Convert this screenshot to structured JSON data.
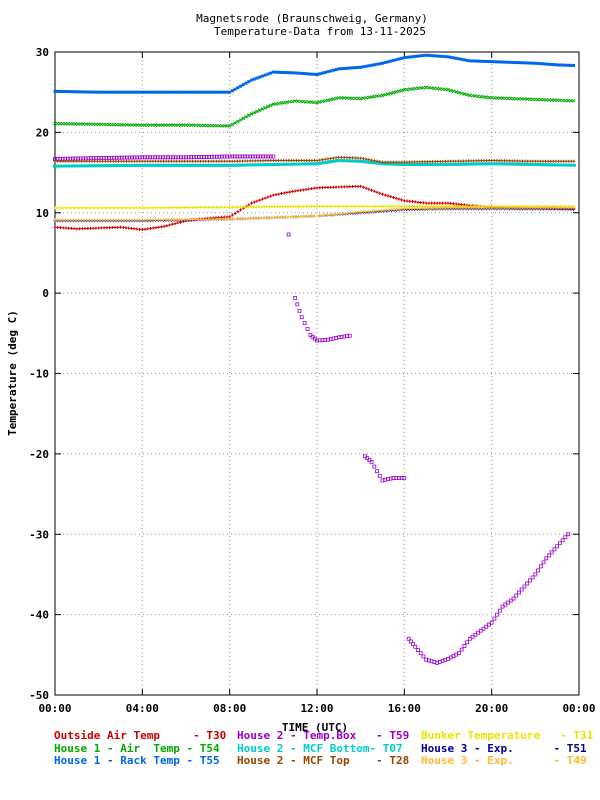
{
  "chart_data": {
    "type": "scatter",
    "title": "Magnetsrode (Braunschweig, Germany)",
    "subtitle": "Temperature-Data from 13-11-2025",
    "xlabel": "TIME (UTC)",
    "ylabel": "Temperature (deg C)",
    "xlim": [
      0,
      24
    ],
    "ylim": [
      -50,
      30
    ],
    "x_ticks": [
      "00:00",
      "04:00",
      "08:00",
      "12:00",
      "16:00",
      "20:00",
      "00:00"
    ],
    "y_ticks": [
      "30",
      "20",
      "10",
      "0",
      "-10",
      "-20",
      "-30",
      "-40",
      "-50"
    ],
    "grid": true,
    "legend_position": "bottom",
    "series": [
      {
        "name": "Outside Air Temp",
        "code": "T30",
        "color": "#cc0000",
        "marker": "plus",
        "points": [
          [
            0,
            8.2
          ],
          [
            1,
            8.0
          ],
          [
            2,
            8.1
          ],
          [
            3,
            8.2
          ],
          [
            4,
            7.9
          ],
          [
            5,
            8.3
          ],
          [
            6,
            9.0
          ],
          [
            7,
            9.3
          ],
          [
            8,
            9.5
          ],
          [
            9,
            11.2
          ],
          [
            10,
            12.2
          ],
          [
            11,
            12.7
          ],
          [
            12,
            13.1
          ],
          [
            13,
            13.2
          ],
          [
            14,
            13.3
          ],
          [
            15,
            12.3
          ],
          [
            16,
            11.5
          ],
          [
            17,
            11.2
          ],
          [
            18,
            11.2
          ],
          [
            19,
            10.9
          ],
          [
            20,
            10.7
          ],
          [
            21,
            10.6
          ],
          [
            22,
            10.5
          ],
          [
            23,
            10.5
          ],
          [
            24,
            10.4
          ]
        ]
      },
      {
        "name": "House 2 - Temp.Box",
        "code": "T59",
        "color": "#9900cc",
        "marker": "square",
        "points": [
          [
            0,
            16.7
          ],
          [
            2,
            16.8
          ],
          [
            4,
            16.9
          ],
          [
            6,
            16.9
          ],
          [
            8,
            17.0
          ],
          [
            10,
            17.0
          ],
          [
            10.7,
            7.3
          ],
          [
            11.0,
            -0.6
          ],
          [
            11.3,
            -3.0
          ],
          [
            11.7,
            -5.2
          ],
          [
            12.0,
            -5.9
          ],
          [
            12.5,
            -5.8
          ],
          [
            13.0,
            -5.5
          ],
          [
            13.5,
            -5.3
          ],
          [
            14.2,
            -20.3
          ],
          [
            14.5,
            -21.0
          ],
          [
            15.0,
            -23.3
          ],
          [
            15.5,
            -23.0
          ],
          [
            16.0,
            -23.0
          ],
          [
            16.2,
            -43.0
          ],
          [
            16.5,
            -44.0
          ],
          [
            17.0,
            -45.6
          ],
          [
            17.5,
            -46.0
          ],
          [
            18.0,
            -45.5
          ],
          [
            18.5,
            -44.8
          ],
          [
            19.0,
            -43.0
          ],
          [
            19.5,
            -42.0
          ],
          [
            20.0,
            -41.0
          ],
          [
            20.5,
            -39.0
          ],
          [
            21.0,
            -38.0
          ],
          [
            21.5,
            -36.5
          ],
          [
            22.0,
            -35.0
          ],
          [
            22.5,
            -33.0
          ],
          [
            23.0,
            -31.5
          ],
          [
            23.5,
            -30.0
          ]
        ]
      },
      {
        "name": "Bunker Temperature",
        "code": "T31",
        "color": "#e6e600",
        "marker": "plus",
        "points": [
          [
            0,
            10.6
          ],
          [
            4,
            10.6
          ],
          [
            8,
            10.7
          ],
          [
            12,
            10.8
          ],
          [
            16,
            10.8
          ],
          [
            20,
            10.8
          ],
          [
            24,
            10.8
          ]
        ]
      },
      {
        "name": "House 1 - Air  Temp",
        "code": "T54",
        "color": "#00aa00",
        "marker": "cross",
        "points": [
          [
            0,
            21.1
          ],
          [
            2,
            21.0
          ],
          [
            4,
            20.9
          ],
          [
            6,
            20.9
          ],
          [
            8,
            20.8
          ],
          [
            9,
            22.3
          ],
          [
            10,
            23.5
          ],
          [
            11,
            23.9
          ],
          [
            12,
            23.7
          ],
          [
            13,
            24.3
          ],
          [
            14,
            24.2
          ],
          [
            15,
            24.6
          ],
          [
            16,
            25.3
          ],
          [
            17,
            25.6
          ],
          [
            18,
            25.3
          ],
          [
            19,
            24.6
          ],
          [
            20,
            24.3
          ],
          [
            21,
            24.2
          ],
          [
            22,
            24.1
          ],
          [
            23,
            24.0
          ],
          [
            24,
            23.9
          ]
        ]
      },
      {
        "name": "House 2 - MCF Bottom",
        "code": "T07",
        "color": "#00cccc",
        "marker": "dash",
        "points": [
          [
            0,
            15.8
          ],
          [
            4,
            15.9
          ],
          [
            8,
            15.9
          ],
          [
            10,
            16.0
          ],
          [
            12,
            16.1
          ],
          [
            13,
            16.5
          ],
          [
            14,
            16.4
          ],
          [
            15,
            16.1
          ],
          [
            16,
            16.0
          ],
          [
            18,
            16.0
          ],
          [
            20,
            16.1
          ],
          [
            22,
            16.0
          ],
          [
            24,
            15.9
          ]
        ]
      },
      {
        "name": "House 3 - Exp.",
        "code": "T51",
        "color": "#000099",
        "marker": "plus",
        "points": [
          [
            0,
            9.0
          ],
          [
            4,
            9.0
          ],
          [
            8,
            9.2
          ],
          [
            12,
            9.6
          ],
          [
            14,
            10.0
          ],
          [
            16,
            10.4
          ],
          [
            18,
            10.5
          ],
          [
            20,
            10.5
          ],
          [
            22,
            10.5
          ],
          [
            24,
            10.5
          ]
        ]
      },
      {
        "name": "House 1 - Rack Temp",
        "code": "T55",
        "color": "#0066ee",
        "marker": "square",
        "points": [
          [
            0,
            25.1
          ],
          [
            2,
            25.0
          ],
          [
            4,
            25.0
          ],
          [
            6,
            25.0
          ],
          [
            8,
            25.0
          ],
          [
            9,
            26.5
          ],
          [
            10,
            27.5
          ],
          [
            11,
            27.4
          ],
          [
            12,
            27.2
          ],
          [
            13,
            27.9
          ],
          [
            14,
            28.1
          ],
          [
            15,
            28.6
          ],
          [
            16,
            29.3
          ],
          [
            17,
            29.6
          ],
          [
            18,
            29.4
          ],
          [
            19,
            28.9
          ],
          [
            20,
            28.8
          ],
          [
            21,
            28.7
          ],
          [
            22,
            28.6
          ],
          [
            23,
            28.4
          ],
          [
            24,
            28.3
          ]
        ]
      },
      {
        "name": "House 2 - MCF Top",
        "code": "T28",
        "color": "#994400",
        "marker": "plus",
        "points": [
          [
            0,
            16.4
          ],
          [
            4,
            16.4
          ],
          [
            8,
            16.4
          ],
          [
            10,
            16.5
          ],
          [
            12,
            16.5
          ],
          [
            13,
            16.9
          ],
          [
            14,
            16.8
          ],
          [
            15,
            16.3
          ],
          [
            16,
            16.3
          ],
          [
            18,
            16.4
          ],
          [
            20,
            16.5
          ],
          [
            22,
            16.4
          ],
          [
            24,
            16.4
          ]
        ]
      },
      {
        "name": "House 3 - Exp.",
        "code": "T49",
        "color": "#ffbb33",
        "marker": "plus",
        "points": [
          [
            0,
            9.1
          ],
          [
            4,
            9.1
          ],
          [
            8,
            9.2
          ],
          [
            12,
            9.6
          ],
          [
            14,
            10.1
          ],
          [
            16,
            10.5
          ],
          [
            18,
            10.6
          ],
          [
            20,
            10.6
          ],
          [
            22,
            10.6
          ],
          [
            24,
            10.6
          ]
        ]
      }
    ],
    "legend_rows": [
      [
        {
          "label": "Outside Air Temp     - T30",
          "color": "#cc0000"
        },
        {
          "label": "House 2 - Temp.Box   - T59",
          "color": "#9900cc"
        },
        {
          "label": "Bunker Temperature   - T31",
          "color": "#e6e600"
        }
      ],
      [
        {
          "label": "House 1 - Air  Temp - T54",
          "color": "#00aa00"
        },
        {
          "label": "House 2 - MCF Bottom- T07",
          "color": "#00cccc"
        },
        {
          "label": "House 3 - Exp.      - T51",
          "color": "#000099"
        }
      ],
      [
        {
          "label": "House 1 - Rack Temp - T55",
          "color": "#0066ee"
        },
        {
          "label": "House 2 - MCF Top    - T28",
          "color": "#994400"
        },
        {
          "label": "House 3 - Exp.      - T49",
          "color": "#ffbb33"
        }
      ]
    ]
  }
}
